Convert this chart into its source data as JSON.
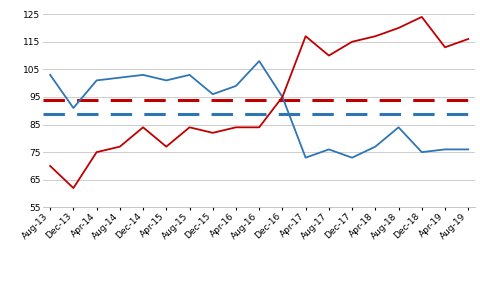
{
  "x_labels": [
    "Aug-13",
    "Dec-13",
    "Apr-14",
    "Aug-14",
    "Dec-14",
    "Apr-15",
    "Aug-15",
    "Dec-15",
    "Apr-16",
    "Aug-16",
    "Dec-16",
    "Apr-17",
    "Aug-17",
    "Dec-17",
    "Apr-18",
    "Aug-18",
    "Dec-18",
    "Apr-19",
    "Aug-19"
  ],
  "blue_line": [
    103,
    91,
    101,
    102,
    103,
    101,
    103,
    96,
    99,
    108,
    95,
    73,
    76,
    73,
    77,
    84,
    75,
    76,
    76
  ],
  "red_line": [
    70,
    62,
    75,
    77,
    84,
    77,
    84,
    82,
    84,
    84,
    95,
    117,
    110,
    115,
    117,
    120,
    124,
    113,
    116
  ],
  "blue_dashed": 89,
  "red_dashed": 94,
  "ylim": [
    55,
    127
  ],
  "yticks": [
    55,
    65,
    75,
    85,
    95,
    105,
    115,
    125
  ],
  "line_color_blue": "#2E75B6",
  "line_color_red": "#C00000",
  "dash_color_blue": "#2E75B6",
  "dash_color_red": "#C00000",
  "bg_color": "#FFFFFF",
  "grid_color": "#BBBBBB",
  "fontsize_tick": 6.5
}
